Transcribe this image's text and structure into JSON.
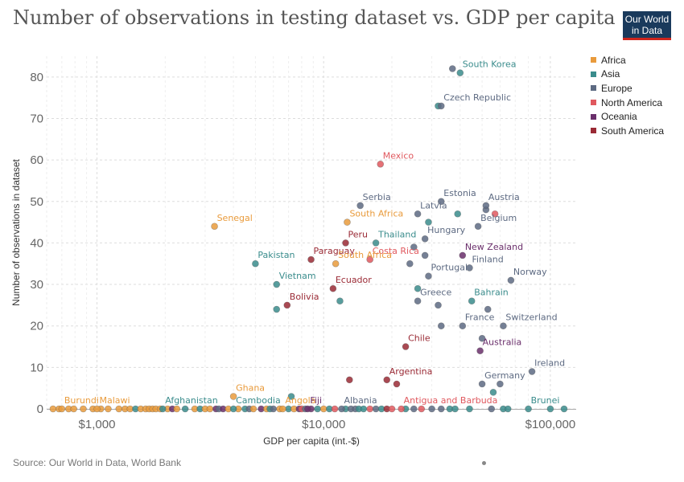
{
  "header": {
    "title": "Number of observations in testing dataset vs. GDP per capita",
    "logo_line1": "Our World",
    "logo_line2": "in Data"
  },
  "footer": {
    "source": "Source: Our World in Data, World Bank"
  },
  "legend": [
    {
      "name": "Africa",
      "color": "#e99b3c"
    },
    {
      "name": "Asia",
      "color": "#3a8c8c"
    },
    {
      "name": "Europe",
      "color": "#5d6a82"
    },
    {
      "name": "North America",
      "color": "#e0585e"
    },
    {
      "name": "Oceania",
      "color": "#6a2f6b"
    },
    {
      "name": "South America",
      "color": "#9a2a35"
    }
  ],
  "chart_data": {
    "type": "scatter",
    "title": "Number of observations in testing dataset vs. GDP per capita",
    "xlabel": "GDP per capita (int.-$)",
    "ylabel": "Number of observations in dataset",
    "x_scale": "log",
    "xlim": [
      600,
      130000
    ],
    "ylim": [
      0,
      85
    ],
    "x_ticks": [
      {
        "value": 1000,
        "label": "$1,000"
      },
      {
        "value": 10000,
        "label": "$10,000"
      },
      {
        "value": 100000,
        "label": "$100,000"
      }
    ],
    "y_ticks": [
      0,
      10,
      20,
      30,
      40,
      50,
      60,
      70,
      80
    ],
    "grid": true,
    "legend_position": "right",
    "labeled_points": [
      {
        "label": "South Korea",
        "x": 40000,
        "y": 81,
        "region": "Asia"
      },
      {
        "label": "Czech Republic",
        "x": 33000,
        "y": 73,
        "region": "Europe"
      },
      {
        "label": "Mexico",
        "x": 17800,
        "y": 59,
        "region": "North America"
      },
      {
        "label": "Estonia",
        "x": 33000,
        "y": 50,
        "region": "Europe"
      },
      {
        "label": "Serbia",
        "x": 14500,
        "y": 49,
        "region": "Europe"
      },
      {
        "label": "Austria",
        "x": 52000,
        "y": 49,
        "region": "Europe"
      },
      {
        "label": "Latvia",
        "x": 26000,
        "y": 47,
        "region": "Europe"
      },
      {
        "label": "South Africa",
        "x": 12700,
        "y": 45,
        "region": "Africa"
      },
      {
        "label": "Belgium",
        "x": 48000,
        "y": 44,
        "region": "Europe"
      },
      {
        "label": "Senegal",
        "x": 3300,
        "y": 44,
        "region": "Africa"
      },
      {
        "label": "Hungary",
        "x": 28000,
        "y": 41,
        "region": "Europe"
      },
      {
        "label": "Peru",
        "x": 12500,
        "y": 40,
        "region": "South America"
      },
      {
        "label": "Thailand",
        "x": 17000,
        "y": 40,
        "region": "Asia"
      },
      {
        "label": "New Zealand",
        "x": 41000,
        "y": 37,
        "region": "Oceania"
      },
      {
        "label": "Paraguay",
        "x": 8800,
        "y": 36,
        "region": "South America"
      },
      {
        "label": "Costa Rica",
        "x": 16000,
        "y": 36,
        "region": "North America"
      },
      {
        "label": "Pakistan",
        "x": 5000,
        "y": 35,
        "region": "Asia"
      },
      {
        "label": "South Africa",
        "x": 11300,
        "y": 35,
        "region": "Africa"
      },
      {
        "label": "Finland",
        "x": 44000,
        "y": 34,
        "region": "Europe"
      },
      {
        "label": "Portugal",
        "x": 29000,
        "y": 32,
        "region": "Europe"
      },
      {
        "label": "Norway",
        "x": 67000,
        "y": 31,
        "region": "Europe"
      },
      {
        "label": "Vietnam",
        "x": 6200,
        "y": 30,
        "region": "Asia"
      },
      {
        "label": "Ecuador",
        "x": 11000,
        "y": 29,
        "region": "South America"
      },
      {
        "label": "Bahrain",
        "x": 45000,
        "y": 26,
        "region": "Asia"
      },
      {
        "label": "Greece",
        "x": 26000,
        "y": 26,
        "region": "Europe"
      },
      {
        "label": "Bolivia",
        "x": 6900,
        "y": 25,
        "region": "South America"
      },
      {
        "label": "France",
        "x": 41000,
        "y": 20,
        "region": "Europe"
      },
      {
        "label": "Switzerland",
        "x": 62000,
        "y": 20,
        "region": "Europe"
      },
      {
        "label": "Chile",
        "x": 23000,
        "y": 15,
        "region": "South America"
      },
      {
        "label": "Australia",
        "x": 49000,
        "y": 14,
        "region": "Oceania"
      },
      {
        "label": "Argentina",
        "x": 19000,
        "y": 7,
        "region": "South America"
      },
      {
        "label": "Germany",
        "x": 50000,
        "y": 6,
        "region": "Europe"
      },
      {
        "label": "Ireland",
        "x": 83000,
        "y": 9,
        "region": "Europe"
      },
      {
        "label": "Ghana",
        "x": 4000,
        "y": 3,
        "region": "Africa"
      },
      {
        "label": "Burundi",
        "x": 700,
        "y": 0,
        "region": "Africa"
      },
      {
        "label": "Malawi",
        "x": 1000,
        "y": 0,
        "region": "Africa"
      },
      {
        "label": "Afghanistan",
        "x": 1950,
        "y": 0,
        "region": "Asia"
      },
      {
        "label": "Cambodia",
        "x": 4000,
        "y": 0,
        "region": "Asia"
      },
      {
        "label": "Angola",
        "x": 6600,
        "y": 0,
        "region": "Africa"
      },
      {
        "label": "Fiji",
        "x": 8500,
        "y": 0,
        "region": "Oceania"
      },
      {
        "label": "Albania",
        "x": 12000,
        "y": 0,
        "region": "Europe"
      },
      {
        "label": "Antigua and Barbuda",
        "x": 22000,
        "y": 0,
        "region": "North America"
      },
      {
        "label": "Brunei",
        "x": 80000,
        "y": 0,
        "region": "Asia"
      }
    ],
    "other_points": [
      {
        "x": 37000,
        "y": 82,
        "region": "Europe"
      },
      {
        "x": 32000,
        "y": 73,
        "region": "Asia"
      },
      {
        "x": 52000,
        "y": 48,
        "region": "Europe"
      },
      {
        "x": 57000,
        "y": 47,
        "region": "North America"
      },
      {
        "x": 39000,
        "y": 47,
        "region": "Asia"
      },
      {
        "x": 29000,
        "y": 45,
        "region": "Asia"
      },
      {
        "x": 25000,
        "y": 39,
        "region": "Europe"
      },
      {
        "x": 28000,
        "y": 37,
        "region": "Europe"
      },
      {
        "x": 24000,
        "y": 35,
        "region": "Europe"
      },
      {
        "x": 26000,
        "y": 29,
        "region": "Asia"
      },
      {
        "x": 11800,
        "y": 26,
        "region": "Asia"
      },
      {
        "x": 32000,
        "y": 25,
        "region": "Europe"
      },
      {
        "x": 53000,
        "y": 24,
        "region": "Europe"
      },
      {
        "x": 6200,
        "y": 24,
        "region": "Asia"
      },
      {
        "x": 33000,
        "y": 20,
        "region": "Europe"
      },
      {
        "x": 50000,
        "y": 17,
        "region": "Europe"
      },
      {
        "x": 13000,
        "y": 7,
        "region": "South America"
      },
      {
        "x": 21000,
        "y": 6,
        "region": "South America"
      },
      {
        "x": 60000,
        "y": 6,
        "region": "Europe"
      },
      {
        "x": 56000,
        "y": 4,
        "region": "Asia"
      },
      {
        "x": 7200,
        "y": 3,
        "region": "Asia"
      }
    ],
    "zero_points": [
      {
        "x": 640,
        "region": "Africa"
      },
      {
        "x": 680,
        "region": "Africa"
      },
      {
        "x": 750,
        "region": "Africa"
      },
      {
        "x": 790,
        "region": "Africa"
      },
      {
        "x": 870,
        "region": "Africa"
      },
      {
        "x": 960,
        "region": "Africa"
      },
      {
        "x": 1040,
        "region": "Africa"
      },
      {
        "x": 1120,
        "region": "Africa"
      },
      {
        "x": 1250,
        "region": "Africa"
      },
      {
        "x": 1330,
        "region": "Africa"
      },
      {
        "x": 1400,
        "region": "Africa"
      },
      {
        "x": 1480,
        "region": "Asia"
      },
      {
        "x": 1560,
        "region": "Africa"
      },
      {
        "x": 1640,
        "region": "Africa"
      },
      {
        "x": 1700,
        "region": "Africa"
      },
      {
        "x": 1760,
        "region": "Africa"
      },
      {
        "x": 1820,
        "region": "Africa"
      },
      {
        "x": 1900,
        "region": "Africa"
      },
      {
        "x": 2050,
        "region": "Africa"
      },
      {
        "x": 2150,
        "region": "Oceania"
      },
      {
        "x": 2250,
        "region": "Africa"
      },
      {
        "x": 2450,
        "region": "Asia"
      },
      {
        "x": 2700,
        "region": "Africa"
      },
      {
        "x": 2850,
        "region": "Asia"
      },
      {
        "x": 3000,
        "region": "Africa"
      },
      {
        "x": 3150,
        "region": "Africa"
      },
      {
        "x": 3350,
        "region": "Oceania"
      },
      {
        "x": 3450,
        "region": "Europe"
      },
      {
        "x": 3600,
        "region": "Oceania"
      },
      {
        "x": 3800,
        "region": "Africa"
      },
      {
        "x": 4200,
        "region": "Africa"
      },
      {
        "x": 4500,
        "region": "Asia"
      },
      {
        "x": 4700,
        "region": "Europe"
      },
      {
        "x": 4900,
        "region": "Africa"
      },
      {
        "x": 5300,
        "region": "Oceania"
      },
      {
        "x": 5600,
        "region": "Africa"
      },
      {
        "x": 5800,
        "region": "Asia"
      },
      {
        "x": 6000,
        "region": "Europe"
      },
      {
        "x": 6400,
        "region": "Africa"
      },
      {
        "x": 7000,
        "region": "Asia"
      },
      {
        "x": 7400,
        "region": "Africa"
      },
      {
        "x": 7800,
        "region": "Oceania"
      },
      {
        "x": 8000,
        "region": "North America"
      },
      {
        "x": 8300,
        "region": "Europe"
      },
      {
        "x": 8800,
        "region": "Oceania"
      },
      {
        "x": 9400,
        "region": "Asia"
      },
      {
        "x": 10000,
        "region": "Africa"
      },
      {
        "x": 10600,
        "region": "Asia"
      },
      {
        "x": 11200,
        "region": "North America"
      },
      {
        "x": 12500,
        "region": "Asia"
      },
      {
        "x": 13200,
        "region": "Europe"
      },
      {
        "x": 13800,
        "region": "Europe"
      },
      {
        "x": 14300,
        "region": "Asia"
      },
      {
        "x": 15000,
        "region": "Asia"
      },
      {
        "x": 16000,
        "region": "North America"
      },
      {
        "x": 17000,
        "region": "Europe"
      },
      {
        "x": 18000,
        "region": "Asia"
      },
      {
        "x": 19000,
        "region": "South America"
      },
      {
        "x": 20000,
        "region": "North America"
      },
      {
        "x": 23000,
        "region": "Asia"
      },
      {
        "x": 25000,
        "region": "Europe"
      },
      {
        "x": 27000,
        "region": "North America"
      },
      {
        "x": 30000,
        "region": "Europe"
      },
      {
        "x": 33000,
        "region": "Europe"
      },
      {
        "x": 36000,
        "region": "Asia"
      },
      {
        "x": 38000,
        "region": "Asia"
      },
      {
        "x": 44000,
        "region": "Asia"
      },
      {
        "x": 55000,
        "region": "Europe"
      },
      {
        "x": 62000,
        "region": "Asia"
      },
      {
        "x": 65000,
        "region": "Asia"
      },
      {
        "x": 100000,
        "region": "Asia"
      },
      {
        "x": 115000,
        "region": "Asia"
      }
    ]
  }
}
